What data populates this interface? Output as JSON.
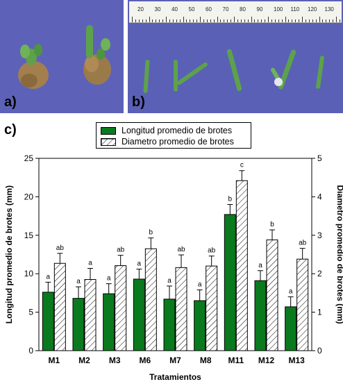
{
  "panels": {
    "a_label": "a)",
    "b_label": "b)",
    "c_label": "c)",
    "ruler_ticks": [
      "20",
      "30",
      "40",
      "50",
      "60",
      "70",
      "80",
      "90",
      "100",
      "110",
      "120",
      "130"
    ]
  },
  "colors": {
    "photo_background": "#5a60b6",
    "series_longitud": "#0a7a1e",
    "series_diametro": "#ffffff",
    "plant_green": "#5da24a",
    "callus_brown": "#9b7a4a"
  },
  "chart_data": {
    "type": "bar",
    "categories": [
      "M1",
      "M2",
      "M3",
      "M6",
      "M7",
      "M8",
      "M11",
      "M12",
      "M13"
    ],
    "xlabel": "Tratamientos",
    "ylabel": "Longitud promedio de brotes (mm)",
    "ylabel_right": "Diametro promedio de brotes (mm)",
    "ylim": [
      0,
      25
    ],
    "ylim_right": [
      0,
      5
    ],
    "yticks": [
      "0",
      "5",
      "10",
      "15",
      "20",
      "25"
    ],
    "yticks_right": [
      "0",
      "1",
      "2",
      "3",
      "4",
      "5"
    ],
    "legend_position": "top-center",
    "series": [
      {
        "name": "Longitud promedio de brotes",
        "axis": "left",
        "fill": "solid",
        "values": [
          7.6,
          6.8,
          7.4,
          9.3,
          6.7,
          6.5,
          17.7,
          9.1,
          5.7
        ],
        "errors": [
          1.3,
          1.5,
          1.3,
          1.3,
          1.7,
          1.4,
          1.3,
          1.3,
          1.3
        ],
        "labels": [
          "a",
          "a",
          "a",
          "a",
          "a",
          "a",
          "b",
          "a",
          "a"
        ]
      },
      {
        "name": "Diametro promedio de brotes",
        "axis": "right",
        "fill": "hatched",
        "values": [
          2.27,
          1.85,
          2.21,
          2.65,
          2.16,
          2.2,
          4.42,
          2.88,
          2.38
        ],
        "errors": [
          0.26,
          0.29,
          0.27,
          0.28,
          0.33,
          0.26,
          0.26,
          0.26,
          0.28
        ],
        "labels": [
          "ab",
          "a",
          "ab",
          "b",
          "ab",
          "ab",
          "c",
          "b",
          "ab"
        ]
      }
    ]
  }
}
